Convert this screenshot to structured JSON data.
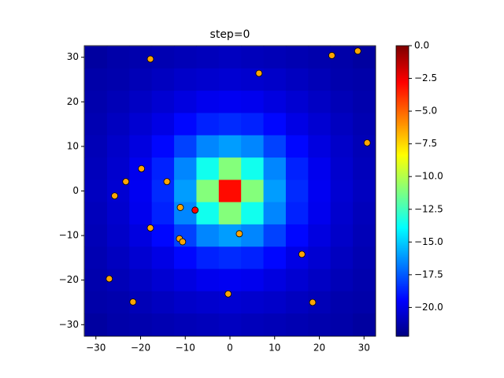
{
  "chart_data": {
    "type": "heatmap",
    "title": "step=0",
    "colormap": "jet",
    "x": [
      -30,
      -25,
      -20,
      -15,
      -10,
      -5,
      0,
      5,
      10,
      15,
      20,
      25,
      30
    ],
    "y": [
      30,
      25,
      20,
      15,
      10,
      5,
      0,
      -5,
      -10,
      -15,
      -20,
      -25,
      -30
    ],
    "z": [
      [
        -21.5,
        -21.3,
        -21.2,
        -21.1,
        -21,
        -20.9,
        -20.8,
        -20.9,
        -21,
        -21.1,
        -21.2,
        -21.3,
        -21.5
      ],
      [
        -21.3,
        -21.2,
        -21,
        -20.8,
        -20.6,
        -20.5,
        -20.4,
        -20.5,
        -20.6,
        -20.8,
        -21,
        -21.2,
        -21.3
      ],
      [
        -21.2,
        -21,
        -20.7,
        -20.4,
        -20.1,
        -19.8,
        -19.7,
        -19.8,
        -20.1,
        -20.4,
        -20.7,
        -21,
        -21.2
      ],
      [
        -21.1,
        -20.8,
        -20.4,
        -20,
        -19.3,
        -18.7,
        -18.5,
        -18.7,
        -19.3,
        -20,
        -20.4,
        -20.8,
        -21.1
      ],
      [
        -21,
        -20.6,
        -20.1,
        -19.3,
        -18,
        -16.5,
        -16,
        -16.5,
        -18,
        -19.3,
        -20.1,
        -20.6,
        -21
      ],
      [
        -20.9,
        -20.5,
        -19.8,
        -18.7,
        -16.5,
        -13.5,
        -11,
        -13.5,
        -16.5,
        -18.7,
        -19.8,
        -20.5,
        -20.9
      ],
      [
        -20.8,
        -20.4,
        -19.7,
        -18.5,
        -16,
        -11,
        -3,
        -11,
        -16,
        -18.5,
        -19.7,
        -20.4,
        -20.8
      ],
      [
        -20.9,
        -20.5,
        -19.8,
        -18.7,
        -16.5,
        -13.5,
        -11,
        -13.5,
        -16.5,
        -18.7,
        -19.8,
        -20.5,
        -20.9
      ],
      [
        -21,
        -20.6,
        -20.1,
        -19.3,
        -18,
        -16.5,
        -16,
        -16.5,
        -18,
        -19.3,
        -20.1,
        -20.6,
        -21
      ],
      [
        -21.1,
        -20.8,
        -20.4,
        -20,
        -19.3,
        -18.7,
        -18.5,
        -18.7,
        -19.3,
        -20,
        -20.4,
        -20.8,
        -21.1
      ],
      [
        -21.2,
        -21,
        -20.7,
        -20.4,
        -20.1,
        -19.8,
        -19.7,
        -19.8,
        -20.1,
        -20.4,
        -20.7,
        -21,
        -21.2
      ],
      [
        -21.3,
        -21.2,
        -21,
        -20.8,
        -20.6,
        -20.5,
        -20.4,
        -20.5,
        -20.6,
        -20.8,
        -21,
        -21.2,
        -21.3
      ],
      [
        -21.5,
        -21.3,
        -21.2,
        -21.1,
        -21,
        -20.9,
        -20.8,
        -20.9,
        -21,
        -21.1,
        -21.2,
        -21.3,
        -21.5
      ]
    ],
    "points": {
      "color": "orange",
      "x": [
        -17.8,
        6.5,
        22.8,
        28.6,
        30.7,
        -19.8,
        -23.3,
        -25.8,
        -14.1,
        -11.1,
        -17.8,
        -11.3,
        -10.6,
        2.1,
        16.1,
        -27.0,
        -21.7,
        -0.4,
        18.5
      ],
      "y": [
        29.6,
        26.4,
        30.4,
        31.4,
        10.8,
        5.0,
        2.1,
        -1.1,
        2.1,
        -3.7,
        -8.3,
        -10.7,
        -11.4,
        -9.6,
        -14.2,
        -19.7,
        -24.9,
        -23.1,
        -25.0
      ]
    },
    "highlight": {
      "color": "red",
      "x": [
        -7.8
      ],
      "y": [
        -4.3
      ]
    },
    "xlim": [
      -32.6,
      32.6
    ],
    "ylim": [
      -32.6,
      32.6
    ],
    "xticks": [
      {
        "value": -30,
        "label": "−30"
      },
      {
        "value": -20,
        "label": "−20"
      },
      {
        "value": -10,
        "label": "−10"
      },
      0,
      10,
      20,
      30
    ],
    "yticks": [
      {
        "value": -30,
        "label": "−30"
      },
      {
        "value": -20,
        "label": "−20"
      },
      {
        "value": -10,
        "label": "−10"
      },
      0,
      10,
      20,
      30
    ],
    "clim": [
      -22.2,
      0
    ],
    "cticks": [
      {
        "value": 0,
        "label": "0.0"
      },
      {
        "value": -2.5,
        "label": "−2.5"
      },
      {
        "value": -5,
        "label": "−5.0"
      },
      {
        "value": -7.5,
        "label": "−7.5"
      },
      {
        "value": -10,
        "label": "−10.0"
      },
      {
        "value": -12.5,
        "label": "−12.5"
      },
      {
        "value": -15,
        "label": "−15.0"
      },
      {
        "value": -17.5,
        "label": "−17.5"
      },
      {
        "value": -20,
        "label": "−20.0"
      }
    ]
  }
}
